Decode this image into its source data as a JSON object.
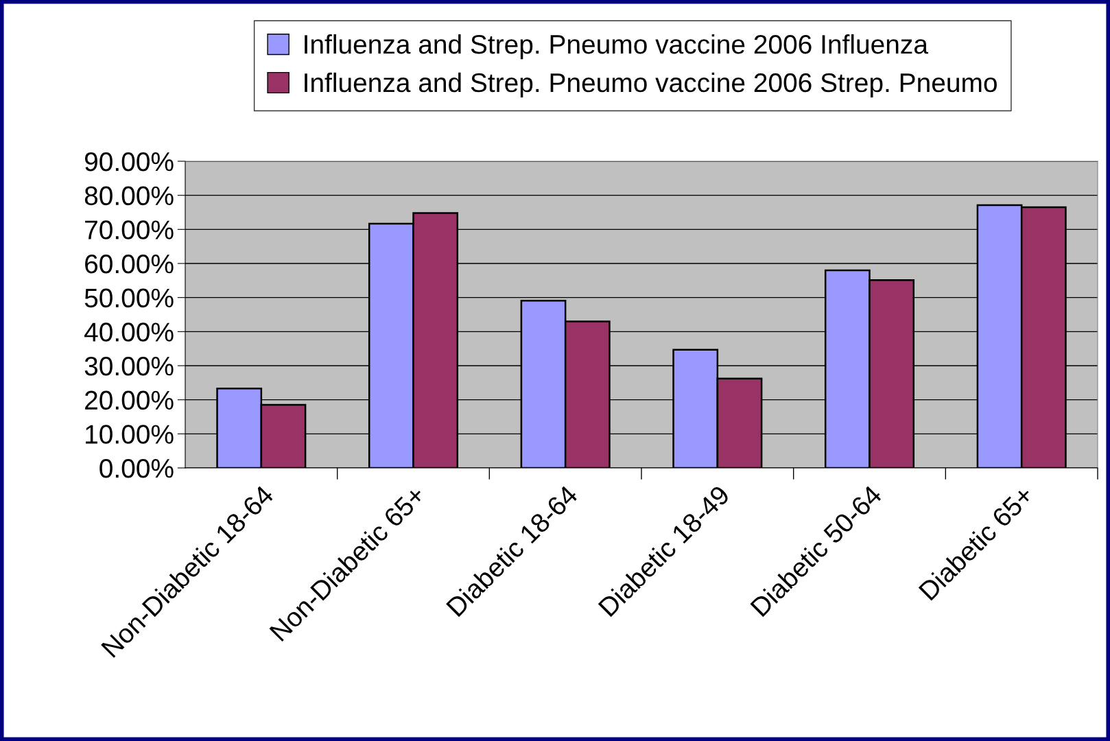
{
  "chart_data": {
    "type": "bar",
    "categories": [
      "Non-Diabetic 18-64",
      "Non-Diabetic 65+",
      "Diabetic 18-64",
      "Diabetic 18-49",
      "Diabetic 50-64",
      "Diabetic 65+"
    ],
    "series": [
      {
        "name": "Influenza and Strep. Pneumo vaccine 2006 Influenza",
        "color": "#9999ff",
        "values": [
          23.3,
          71.7,
          49.1,
          34.7,
          58.0,
          77.1
        ]
      },
      {
        "name": "Influenza and Strep. Pneumo vaccine 2006 Strep. Pneumo",
        "color": "#993366",
        "values": [
          18.5,
          74.8,
          43.0,
          26.2,
          55.1,
          76.5
        ]
      }
    ],
    "ylim": [
      0,
      90
    ],
    "yticks": [
      {
        "value": 0,
        "label": "0.00%"
      },
      {
        "value": 10,
        "label": "10.00%"
      },
      {
        "value": 20,
        "label": "20.00%"
      },
      {
        "value": 30,
        "label": "30.00%"
      },
      {
        "value": 40,
        "label": "40.00%"
      },
      {
        "value": 50,
        "label": "50.00%"
      },
      {
        "value": 60,
        "label": "60.00%"
      },
      {
        "value": 70,
        "label": "70.00%"
      },
      {
        "value": 80,
        "label": "80.00%"
      },
      {
        "value": 90,
        "label": "90.00%"
      }
    ],
    "grid": "y",
    "legend": "top"
  }
}
